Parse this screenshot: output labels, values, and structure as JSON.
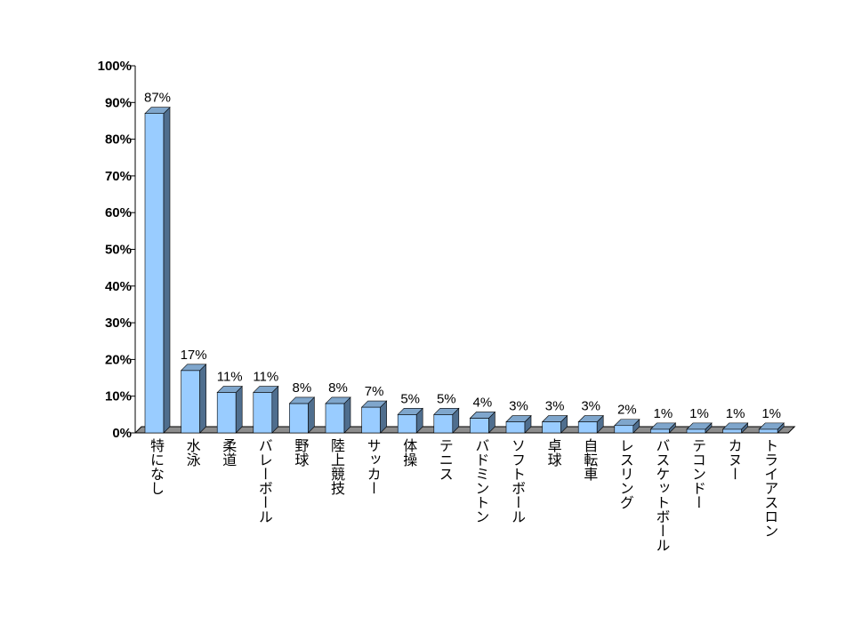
{
  "chart_data": {
    "type": "bar",
    "title": "",
    "xlabel": "",
    "ylabel": "",
    "ylim": [
      0,
      100
    ],
    "yticks": [
      "0%",
      "10%",
      "20%",
      "30%",
      "40%",
      "50%",
      "60%",
      "70%",
      "80%",
      "90%",
      "100%"
    ],
    "categories": [
      "特になし",
      "水泳",
      "柔道",
      "バレーボール",
      "野球",
      "陸上競技",
      "サッカー",
      "体操",
      "テニス",
      "バドミントン",
      "ソフトボール",
      "卓球",
      "自転車",
      "レスリング",
      "バスケットボール",
      "テコンドー",
      "カヌー",
      "トライアスロン"
    ],
    "values": [
      87,
      17,
      11,
      11,
      8,
      8,
      7,
      5,
      5,
      4,
      3,
      3,
      3,
      2,
      1,
      1,
      1,
      1
    ],
    "data_labels": [
      "87%",
      "17%",
      "11%",
      "11%",
      "8%",
      "8%",
      "7%",
      "5%",
      "5%",
      "4%",
      "3%",
      "3%",
      "3%",
      "2%",
      "1%",
      "1%",
      "1%",
      "1%"
    ],
    "bar_color": "#99ccff",
    "bar_side_color": "#4f6e8e",
    "bar_top_color": "#7fa6cc",
    "floor_color": "#8c8c8c",
    "grid": false,
    "legend": "none"
  }
}
